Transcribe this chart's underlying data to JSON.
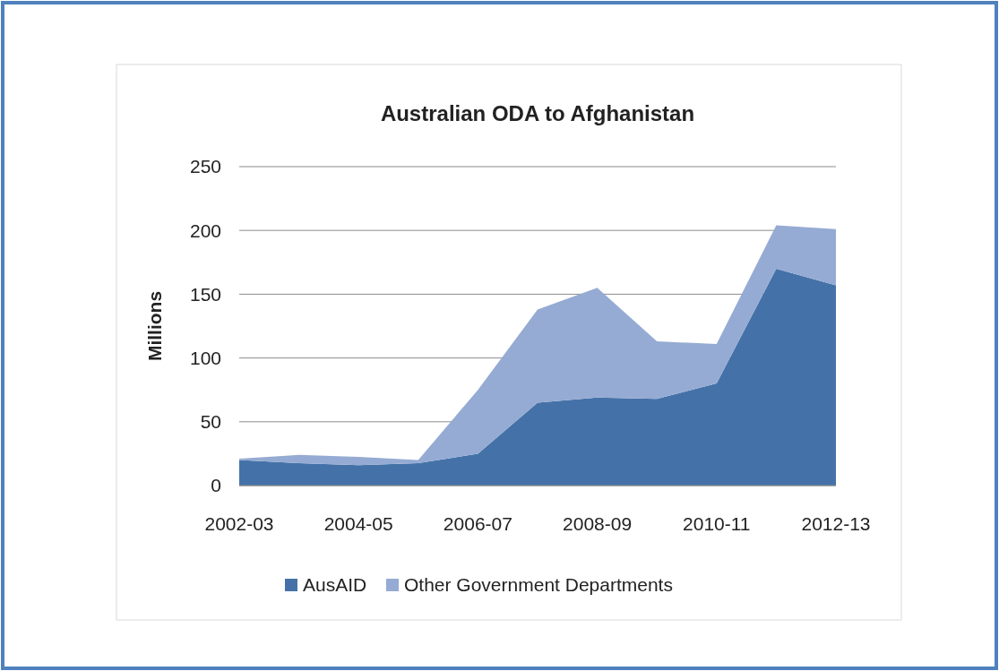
{
  "chart_data": {
    "type": "area",
    "title": "Australian ODA to Afghanistan",
    "ylabel": "Millions",
    "stacked": true,
    "categories": [
      "2002-03",
      null,
      "2004-05",
      null,
      "2006-07",
      null,
      "2008-09",
      null,
      "2010-11",
      null,
      "2012-13"
    ],
    "series": [
      {
        "name": "AusAID",
        "color": "#4472a8",
        "values": [
          20,
          17.5,
          16,
          17.5,
          25,
          65,
          69,
          68,
          80,
          170,
          157
        ]
      },
      {
        "name": "Other Government Departments",
        "color": "#95abd3",
        "values": [
          1,
          6.5,
          6.5,
          2.5,
          50,
          73,
          86,
          45,
          31,
          34,
          44
        ]
      }
    ],
    "ylim": [
      0,
      250
    ],
    "yticks": [
      0,
      50,
      100,
      150,
      200,
      250
    ],
    "grid": "y",
    "legend": "bottom"
  }
}
